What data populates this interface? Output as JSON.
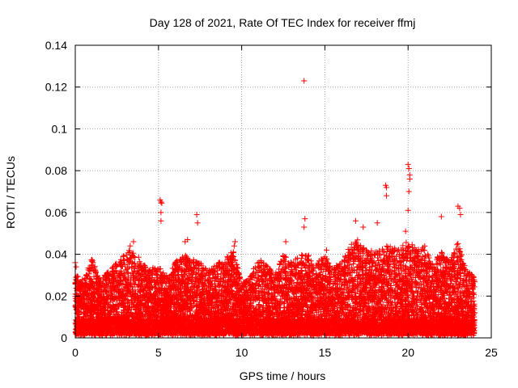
{
  "chart_data": {
    "type": "scatter",
    "title": "Day 128 of 2021, Rate Of TEC Index for receiver ffmj",
    "xlabel": "GPS time / hours",
    "ylabel": "ROTI / TECUs",
    "xlim": [
      0,
      25
    ],
    "ylim": [
      0,
      0.14
    ],
    "xticks": [
      0,
      5,
      10,
      15,
      20,
      25
    ],
    "xtick_labels": [
      "0",
      "5",
      "10",
      "15",
      "20",
      "25"
    ],
    "yticks": [
      0,
      0.02,
      0.04,
      0.06,
      0.08,
      0.1,
      0.12,
      0.14
    ],
    "ytick_labels": [
      "0",
      "0.02",
      "0.04",
      "0.06",
      "0.08",
      "0.1",
      "0.12",
      "0.14"
    ],
    "grid": true,
    "marker": "+",
    "colors": {
      "points": "#ff0000",
      "grid": "#a0a0a0",
      "axes": "#000000"
    },
    "x_range_observed": [
      0,
      24
    ],
    "typical_roti_band": [
      0.002,
      0.035
    ],
    "notable_points": [
      {
        "x": 13.75,
        "y": 0.123
      },
      {
        "x": 5.1,
        "y": 0.066
      },
      {
        "x": 5.15,
        "y": 0.065
      },
      {
        "x": 5.2,
        "y": 0.0645
      },
      {
        "x": 5.15,
        "y": 0.06
      },
      {
        "x": 5.15,
        "y": 0.056
      },
      {
        "x": 7.3,
        "y": 0.059
      },
      {
        "x": 7.35,
        "y": 0.055
      },
      {
        "x": 18.65,
        "y": 0.073
      },
      {
        "x": 18.7,
        "y": 0.072
      },
      {
        "x": 18.7,
        "y": 0.068
      },
      {
        "x": 20.0,
        "y": 0.083
      },
      {
        "x": 20.05,
        "y": 0.081
      },
      {
        "x": 20.1,
        "y": 0.078
      },
      {
        "x": 20.1,
        "y": 0.076
      },
      {
        "x": 20.05,
        "y": 0.07
      },
      {
        "x": 20.0,
        "y": 0.061
      },
      {
        "x": 23.0,
        "y": 0.063
      },
      {
        "x": 23.1,
        "y": 0.062
      },
      {
        "x": 23.15,
        "y": 0.059
      },
      {
        "x": 22.0,
        "y": 0.058
      },
      {
        "x": 16.85,
        "y": 0.056
      },
      {
        "x": 17.3,
        "y": 0.053
      },
      {
        "x": 18.15,
        "y": 0.055
      },
      {
        "x": 13.8,
        "y": 0.057
      },
      {
        "x": 13.75,
        "y": 0.053
      },
      {
        "x": 6.75,
        "y": 0.047
      },
      {
        "x": 6.6,
        "y": 0.046
      },
      {
        "x": 9.6,
        "y": 0.046
      },
      {
        "x": 9.55,
        "y": 0.044
      },
      {
        "x": 3.5,
        "y": 0.046
      },
      {
        "x": 3.3,
        "y": 0.044
      },
      {
        "x": 12.65,
        "y": 0.046
      },
      {
        "x": 15.1,
        "y": 0.042
      },
      {
        "x": 19.85,
        "y": 0.051
      },
      {
        "x": 0.0,
        "y": 0.036
      },
      {
        "x": 0.05,
        "y": 0.034
      }
    ],
    "envelope_upper": [
      [
        0,
        0.03
      ],
      [
        0.5,
        0.028
      ],
      [
        1,
        0.038
      ],
      [
        1.5,
        0.028
      ],
      [
        2,
        0.032
      ],
      [
        2.5,
        0.036
      ],
      [
        3,
        0.04
      ],
      [
        3.5,
        0.044
      ],
      [
        4,
        0.036
      ],
      [
        4.5,
        0.034
      ],
      [
        5,
        0.034
      ],
      [
        5.5,
        0.03
      ],
      [
        6,
        0.036
      ],
      [
        6.5,
        0.04
      ],
      [
        7,
        0.038
      ],
      [
        7.5,
        0.036
      ],
      [
        8,
        0.032
      ],
      [
        8.5,
        0.036
      ],
      [
        9,
        0.038
      ],
      [
        9.5,
        0.042
      ],
      [
        10,
        0.026
      ],
      [
        10.5,
        0.03
      ],
      [
        11,
        0.038
      ],
      [
        11.5,
        0.036
      ],
      [
        12,
        0.03
      ],
      [
        12.5,
        0.04
      ],
      [
        13,
        0.036
      ],
      [
        13.5,
        0.04
      ],
      [
        14,
        0.04
      ],
      [
        14.5,
        0.036
      ],
      [
        15,
        0.04
      ],
      [
        15.5,
        0.034
      ],
      [
        16,
        0.036
      ],
      [
        16.5,
        0.044
      ],
      [
        17,
        0.048
      ],
      [
        17.5,
        0.042
      ],
      [
        18,
        0.042
      ],
      [
        18.5,
        0.044
      ],
      [
        19,
        0.044
      ],
      [
        19.5,
        0.042
      ],
      [
        20,
        0.048
      ],
      [
        20.5,
        0.042
      ],
      [
        21,
        0.044
      ],
      [
        21.5,
        0.036
      ],
      [
        22,
        0.042
      ],
      [
        22.5,
        0.036
      ],
      [
        23,
        0.046
      ],
      [
        23.5,
        0.032
      ],
      [
        24,
        0.03
      ]
    ]
  }
}
